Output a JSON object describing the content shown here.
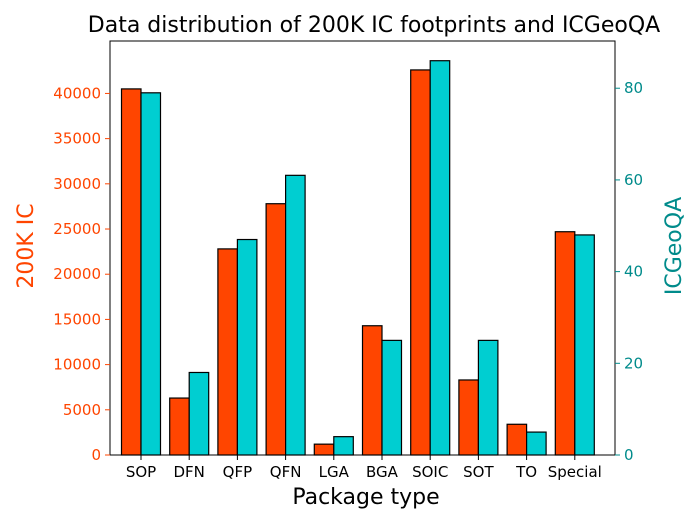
{
  "chart_data": {
    "type": "bar",
    "title": "Data distribution of 200K IC footprints and ICGeoQA",
    "xlabel": "Package type",
    "categories": [
      "SOP",
      "DFN",
      "QFP",
      "QFN",
      "LGA",
      "BGA",
      "SOIC",
      "SOT",
      "TO",
      "Special"
    ],
    "series": [
      {
        "name": "200K IC",
        "axis": "left",
        "color": "#ff4500",
        "values": [
          40500,
          6300,
          22800,
          27800,
          1200,
          14300,
          42600,
          8300,
          3400,
          24700
        ]
      },
      {
        "name": "ICGeoQA",
        "axis": "right",
        "color": "#00ced1",
        "values": [
          79,
          18,
          47,
          61,
          4,
          25,
          86,
          25,
          5,
          48
        ]
      }
    ],
    "left_axis": {
      "label": "200K IC",
      "color": "#ff4500",
      "ylim": [
        0,
        45800
      ],
      "ticks": [
        0,
        5000,
        10000,
        15000,
        20000,
        25000,
        30000,
        35000,
        40000
      ]
    },
    "right_axis": {
      "label": "ICGeoQA",
      "color": "#008b8b",
      "ylim": [
        0,
        90.3
      ],
      "ticks": [
        0,
        20,
        40,
        60,
        80
      ]
    },
    "bar_edge_color": "#000000"
  }
}
